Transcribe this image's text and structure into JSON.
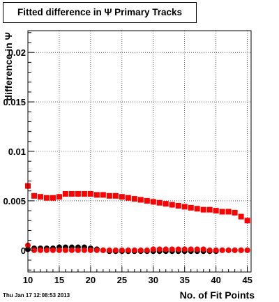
{
  "title": "Fitted difference in Ψ  Primary Tracks",
  "footer": "Thu Jan 17 12:08:53 2013",
  "chart_data": {
    "type": "scatter",
    "title": "Fitted difference in Ψ  Primary Tracks",
    "xlabel": "No. of Fit Points",
    "ylabel": "difference in Ψ",
    "xlim": [
      10,
      45.6
    ],
    "ylim": [
      -0.0022,
      0.0222
    ],
    "xticks": [
      10,
      15,
      20,
      25,
      30,
      35,
      40,
      45
    ],
    "yticks": [
      0,
      0.005,
      0.01,
      0.015,
      0.02
    ],
    "ytick_labels": [
      "0",
      "0.005",
      "0.01",
      "0.015",
      "0.02"
    ],
    "grid": true,
    "marker": "square",
    "series": [
      {
        "color": "#ff0000",
        "marker": "square",
        "x": [
          10,
          11,
          12,
          13,
          14,
          15,
          16,
          17,
          18,
          19,
          20,
          21,
          22,
          23,
          24,
          25,
          26,
          27,
          28,
          29,
          30,
          31,
          32,
          33,
          34,
          35,
          36,
          37,
          38,
          39,
          40,
          41,
          42,
          43,
          44,
          45
        ],
        "y": [
          0.0065,
          0.0055,
          0.0054,
          0.0053,
          0.0053,
          0.0054,
          0.0057,
          0.0057,
          0.0057,
          0.0057,
          0.0057,
          0.0056,
          0.0056,
          0.0055,
          0.0055,
          0.0054,
          0.0053,
          0.0052,
          0.0051,
          0.005,
          0.0049,
          0.0048,
          0.0047,
          0.0046,
          0.0045,
          0.0044,
          0.0043,
          0.0042,
          0.0041,
          0.0041,
          0.004,
          0.0039,
          0.0039,
          0.0038,
          0.0034,
          0.003
        ]
      },
      {
        "color": "#000000",
        "marker": "circle",
        "x": [
          10,
          11,
          12,
          13,
          14,
          15,
          16,
          17,
          18,
          19,
          20,
          21,
          22,
          23,
          24,
          25,
          26,
          27,
          28,
          29,
          30,
          31,
          32,
          33,
          34,
          35,
          36,
          37,
          38,
          39,
          40,
          41,
          42,
          43,
          44,
          45
        ],
        "y": [
          0.0001,
          0.0002,
          0.0002,
          0.0002,
          0.0002,
          0.0003,
          0.0003,
          0.0003,
          0.0003,
          0.0003,
          0.0002,
          0.0001,
          0.0,
          -0.0001,
          -0.0001,
          -0.0001,
          -0.0001,
          -0.0001,
          -0.0001,
          -0.0001,
          -0.0001,
          -0.0001,
          -0.0001,
          -0.0001,
          -0.0001,
          -0.0001,
          -0.0001,
          -0.0001,
          -0.0001,
          -0.0001,
          -0.0001,
          0.0,
          0.0,
          0.0,
          0.0,
          0.0
        ]
      },
      {
        "color": "#ff0000",
        "marker": "circle",
        "x": [
          10,
          11,
          12,
          13,
          14,
          15,
          16,
          17,
          18,
          19,
          20,
          21,
          22,
          23,
          24,
          25,
          26,
          27,
          28,
          29,
          30,
          31,
          32,
          33,
          34,
          35,
          36,
          37,
          38,
          39,
          40,
          41,
          42,
          43,
          44,
          45
        ],
        "y": [
          0.0005,
          0.0,
          0.0,
          0.0,
          0.0,
          0.0,
          0.0,
          0.0,
          0.0,
          0.0,
          0.0,
          0.0,
          0.0,
          0.0,
          0.0,
          0.0,
          0.0,
          0.0,
          0.0,
          0.0,
          0.0001,
          0.0001,
          0.0001,
          0.0001,
          0.0001,
          0.0001,
          0.0001,
          0.0001,
          0.0001,
          0.0,
          0.0,
          0.0,
          0.0,
          0.0,
          0.0,
          0.0
        ]
      }
    ]
  }
}
